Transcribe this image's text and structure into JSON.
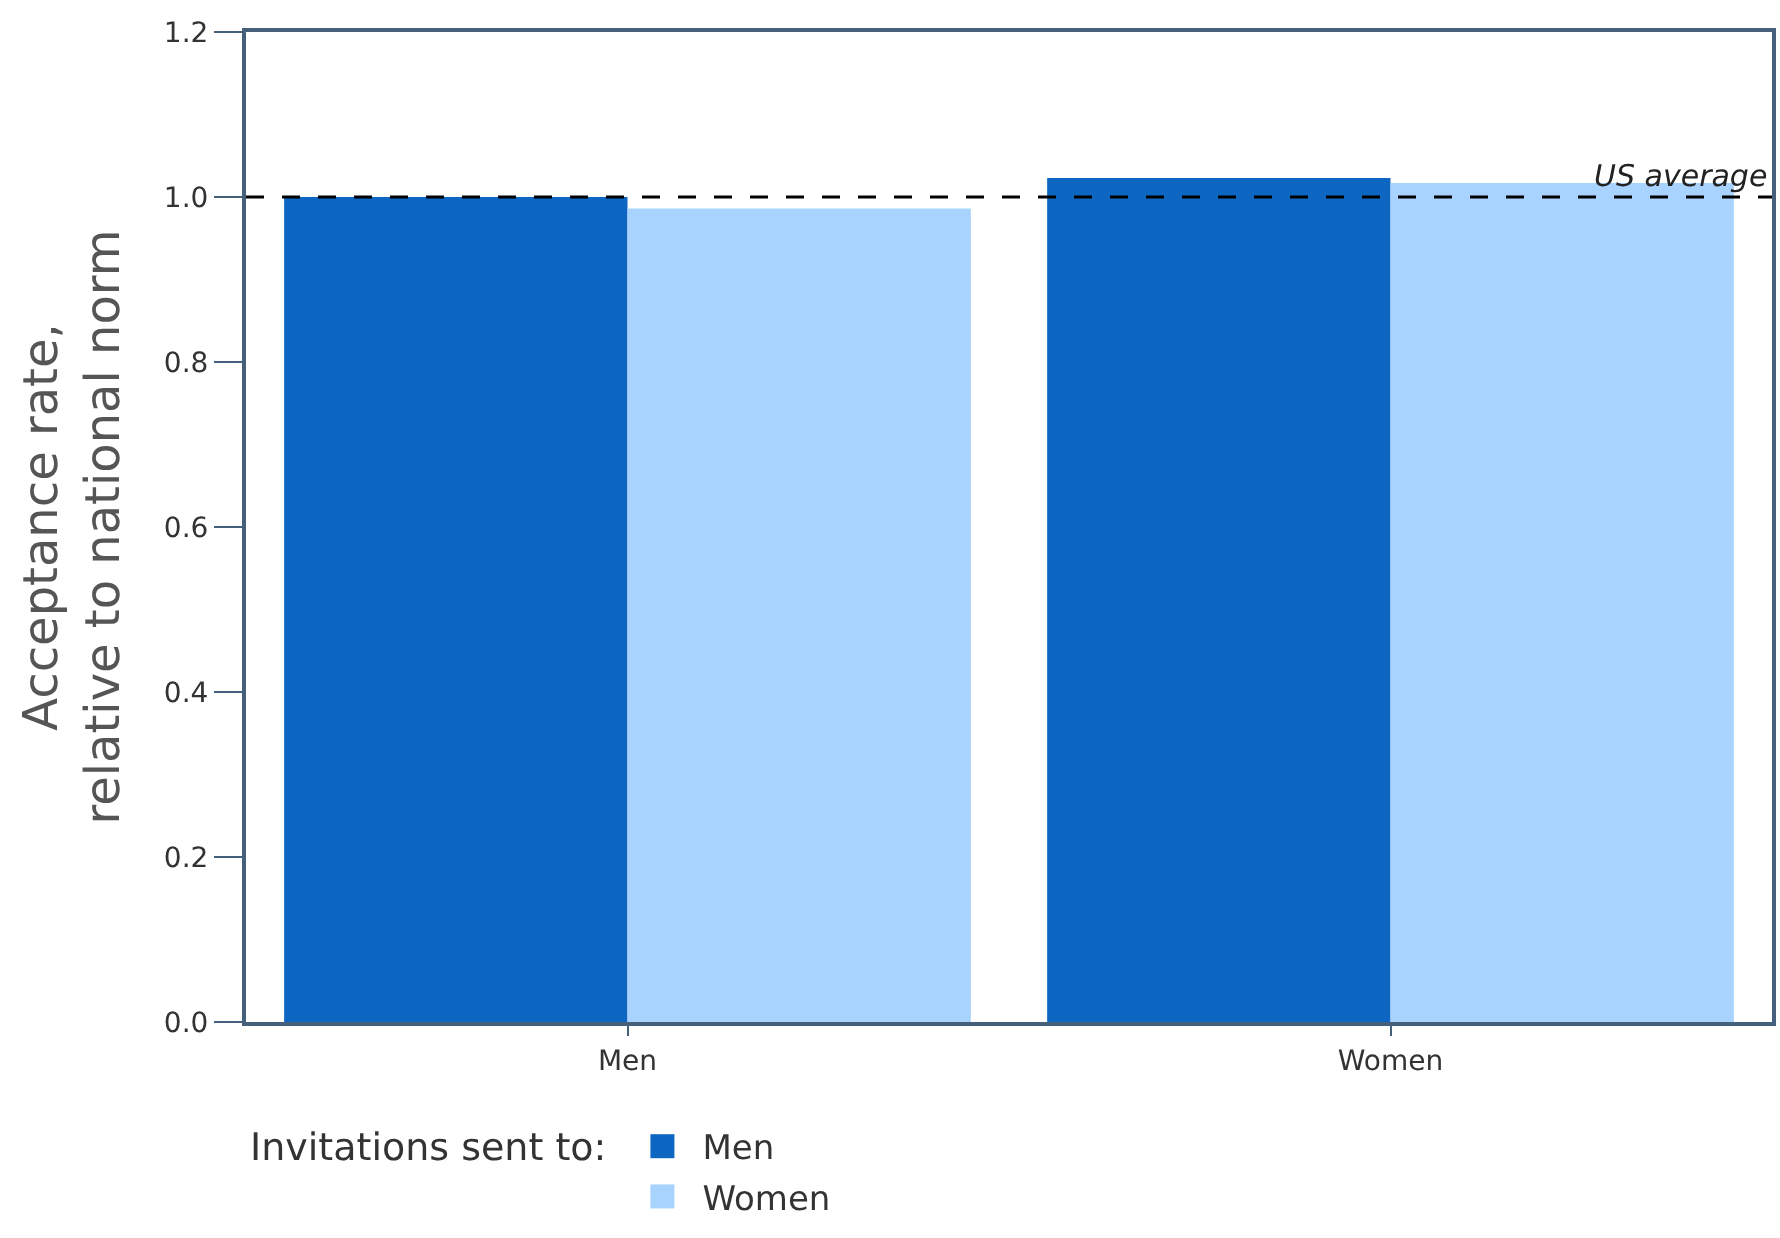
{
  "chart_data": {
    "type": "bar",
    "categories": [
      "Men",
      "Women"
    ],
    "series": [
      {
        "name": "Men",
        "color": "#0c66c2",
        "values": [
          1.0,
          1.023
        ]
      },
      {
        "name": "Women",
        "color": "#a8d3fe",
        "values": [
          0.986,
          1.017
        ]
      }
    ],
    "ylabel": "Acceptance rate,\nrelative to national norm",
    "legend_title": "Invitations sent to:",
    "ylim": [
      0,
      1.2
    ],
    "yticks": [
      {
        "value": 0,
        "label": "0.0"
      },
      {
        "value": 0.2,
        "label": "0.2"
      },
      {
        "value": 0.4,
        "label": "0.4"
      },
      {
        "value": 0.6,
        "label": "0.6"
      },
      {
        "value": 0.8,
        "label": "0.8"
      },
      {
        "value": 1.0,
        "label": "1.0"
      },
      {
        "value": 1.2,
        "label": "1.2"
      }
    ],
    "ref_lines": [
      {
        "axis": "y",
        "value": 1.0,
        "label": "US average",
        "color": "#000000",
        "line_style": "dashed"
      }
    ],
    "legend": "bottom"
  }
}
